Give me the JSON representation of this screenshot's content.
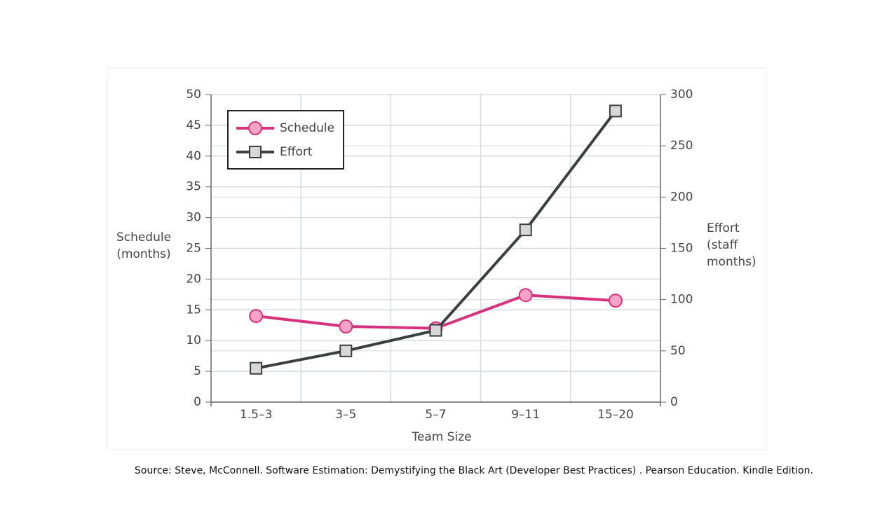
{
  "chart_data": {
    "type": "line",
    "x_label": "Team Size",
    "y_label": [
      "Schedule",
      "(months)"
    ],
    "y2_label": [
      "Effort",
      "(staff",
      "months)"
    ],
    "categories": [
      "1.5–3",
      "3–5",
      "5–7",
      "9–11",
      "15–20"
    ],
    "series": [
      {
        "name": "Schedule",
        "color": "#d6337f",
        "marker": "circle",
        "values": [
          14,
          12.3,
          12,
          17.4,
          16.5
        ]
      },
      {
        "name": "Effort",
        "color": "#3a3f3f",
        "marker": "square",
        "axis": "y2",
        "values": [
          33,
          50,
          70,
          168,
          284
        ]
      }
    ],
    "ylim": [
      0,
      50
    ],
    "yticks": [
      0,
      5,
      10,
      15,
      20,
      25,
      30,
      35,
      40,
      45,
      50
    ],
    "y2lim": [
      0,
      300
    ],
    "y2ticks": [
      0,
      50,
      100,
      150,
      200,
      250,
      300
    ],
    "grid": true,
    "legend": "upper left",
    "source": "Source: Steve, McConnell. Software Estimation: Demystifying the Black Art (Developer Best Practices) . Pearson Education. Kindle Edition."
  }
}
